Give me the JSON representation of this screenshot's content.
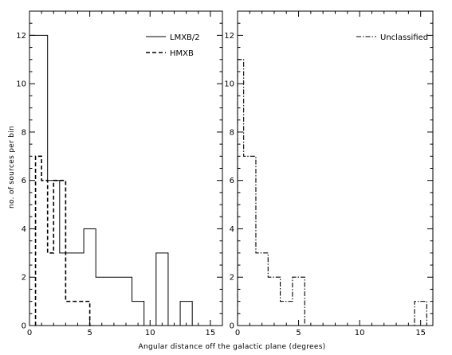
{
  "chart_data": [
    {
      "type": "histogram",
      "xlim": [
        0,
        16
      ],
      "ylim": [
        0,
        13
      ],
      "x_ticks": [
        0,
        5,
        10,
        15
      ],
      "y_ticks": [
        0,
        2,
        4,
        6,
        8,
        10,
        12
      ],
      "ylabel": "no. of sources per bin",
      "legend_position": "top-right",
      "series": [
        {
          "name": "LMXB/2",
          "style": "solid",
          "color": "#000000",
          "bins": [
            [
              0,
              1.5,
              12
            ],
            [
              1.5,
              2.5,
              6
            ],
            [
              2.5,
              4.5,
              3
            ],
            [
              4.5,
              5.5,
              4
            ],
            [
              5.5,
              8.5,
              2
            ],
            [
              8.5,
              9.5,
              1
            ],
            [
              9.5,
              10.5,
              0
            ],
            [
              10.5,
              11.5,
              3
            ],
            [
              11.5,
              12.5,
              0
            ],
            [
              12.5,
              13.5,
              1
            ],
            [
              13.5,
              14,
              0
            ]
          ]
        },
        {
          "name": "HMXB",
          "style": "dashed",
          "color": "#000000",
          "bins": [
            [
              0.5,
              1.0,
              7
            ],
            [
              1.0,
              1.5,
              6
            ],
            [
              1.5,
              2.0,
              3
            ],
            [
              2.0,
              3.0,
              6
            ],
            [
              3.0,
              5.0,
              1
            ],
            [
              5.0,
              5.3,
              0
            ]
          ]
        }
      ]
    },
    {
      "type": "histogram",
      "xlim": [
        0,
        16
      ],
      "ylim": [
        0,
        13
      ],
      "x_ticks": [
        0,
        5,
        10,
        15
      ],
      "y_ticks": [
        0,
        2,
        4,
        6,
        8,
        10,
        12
      ],
      "xlabel": "Angular distance off the galactic plane (degrees)",
      "legend_position": "top-right",
      "series": [
        {
          "name": "Unclassified",
          "style": "dash-dot",
          "color": "#000000",
          "bins": [
            [
              0,
              0.5,
              11
            ],
            [
              0.5,
              1.5,
              7
            ],
            [
              1.5,
              2.5,
              3
            ],
            [
              2.5,
              3.5,
              2
            ],
            [
              3.5,
              4.5,
              1
            ],
            [
              4.5,
              5.5,
              2
            ],
            [
              5.5,
              14.5,
              0
            ],
            [
              14.5,
              15.5,
              1
            ],
            [
              15.5,
              16,
              0
            ]
          ]
        }
      ]
    }
  ]
}
